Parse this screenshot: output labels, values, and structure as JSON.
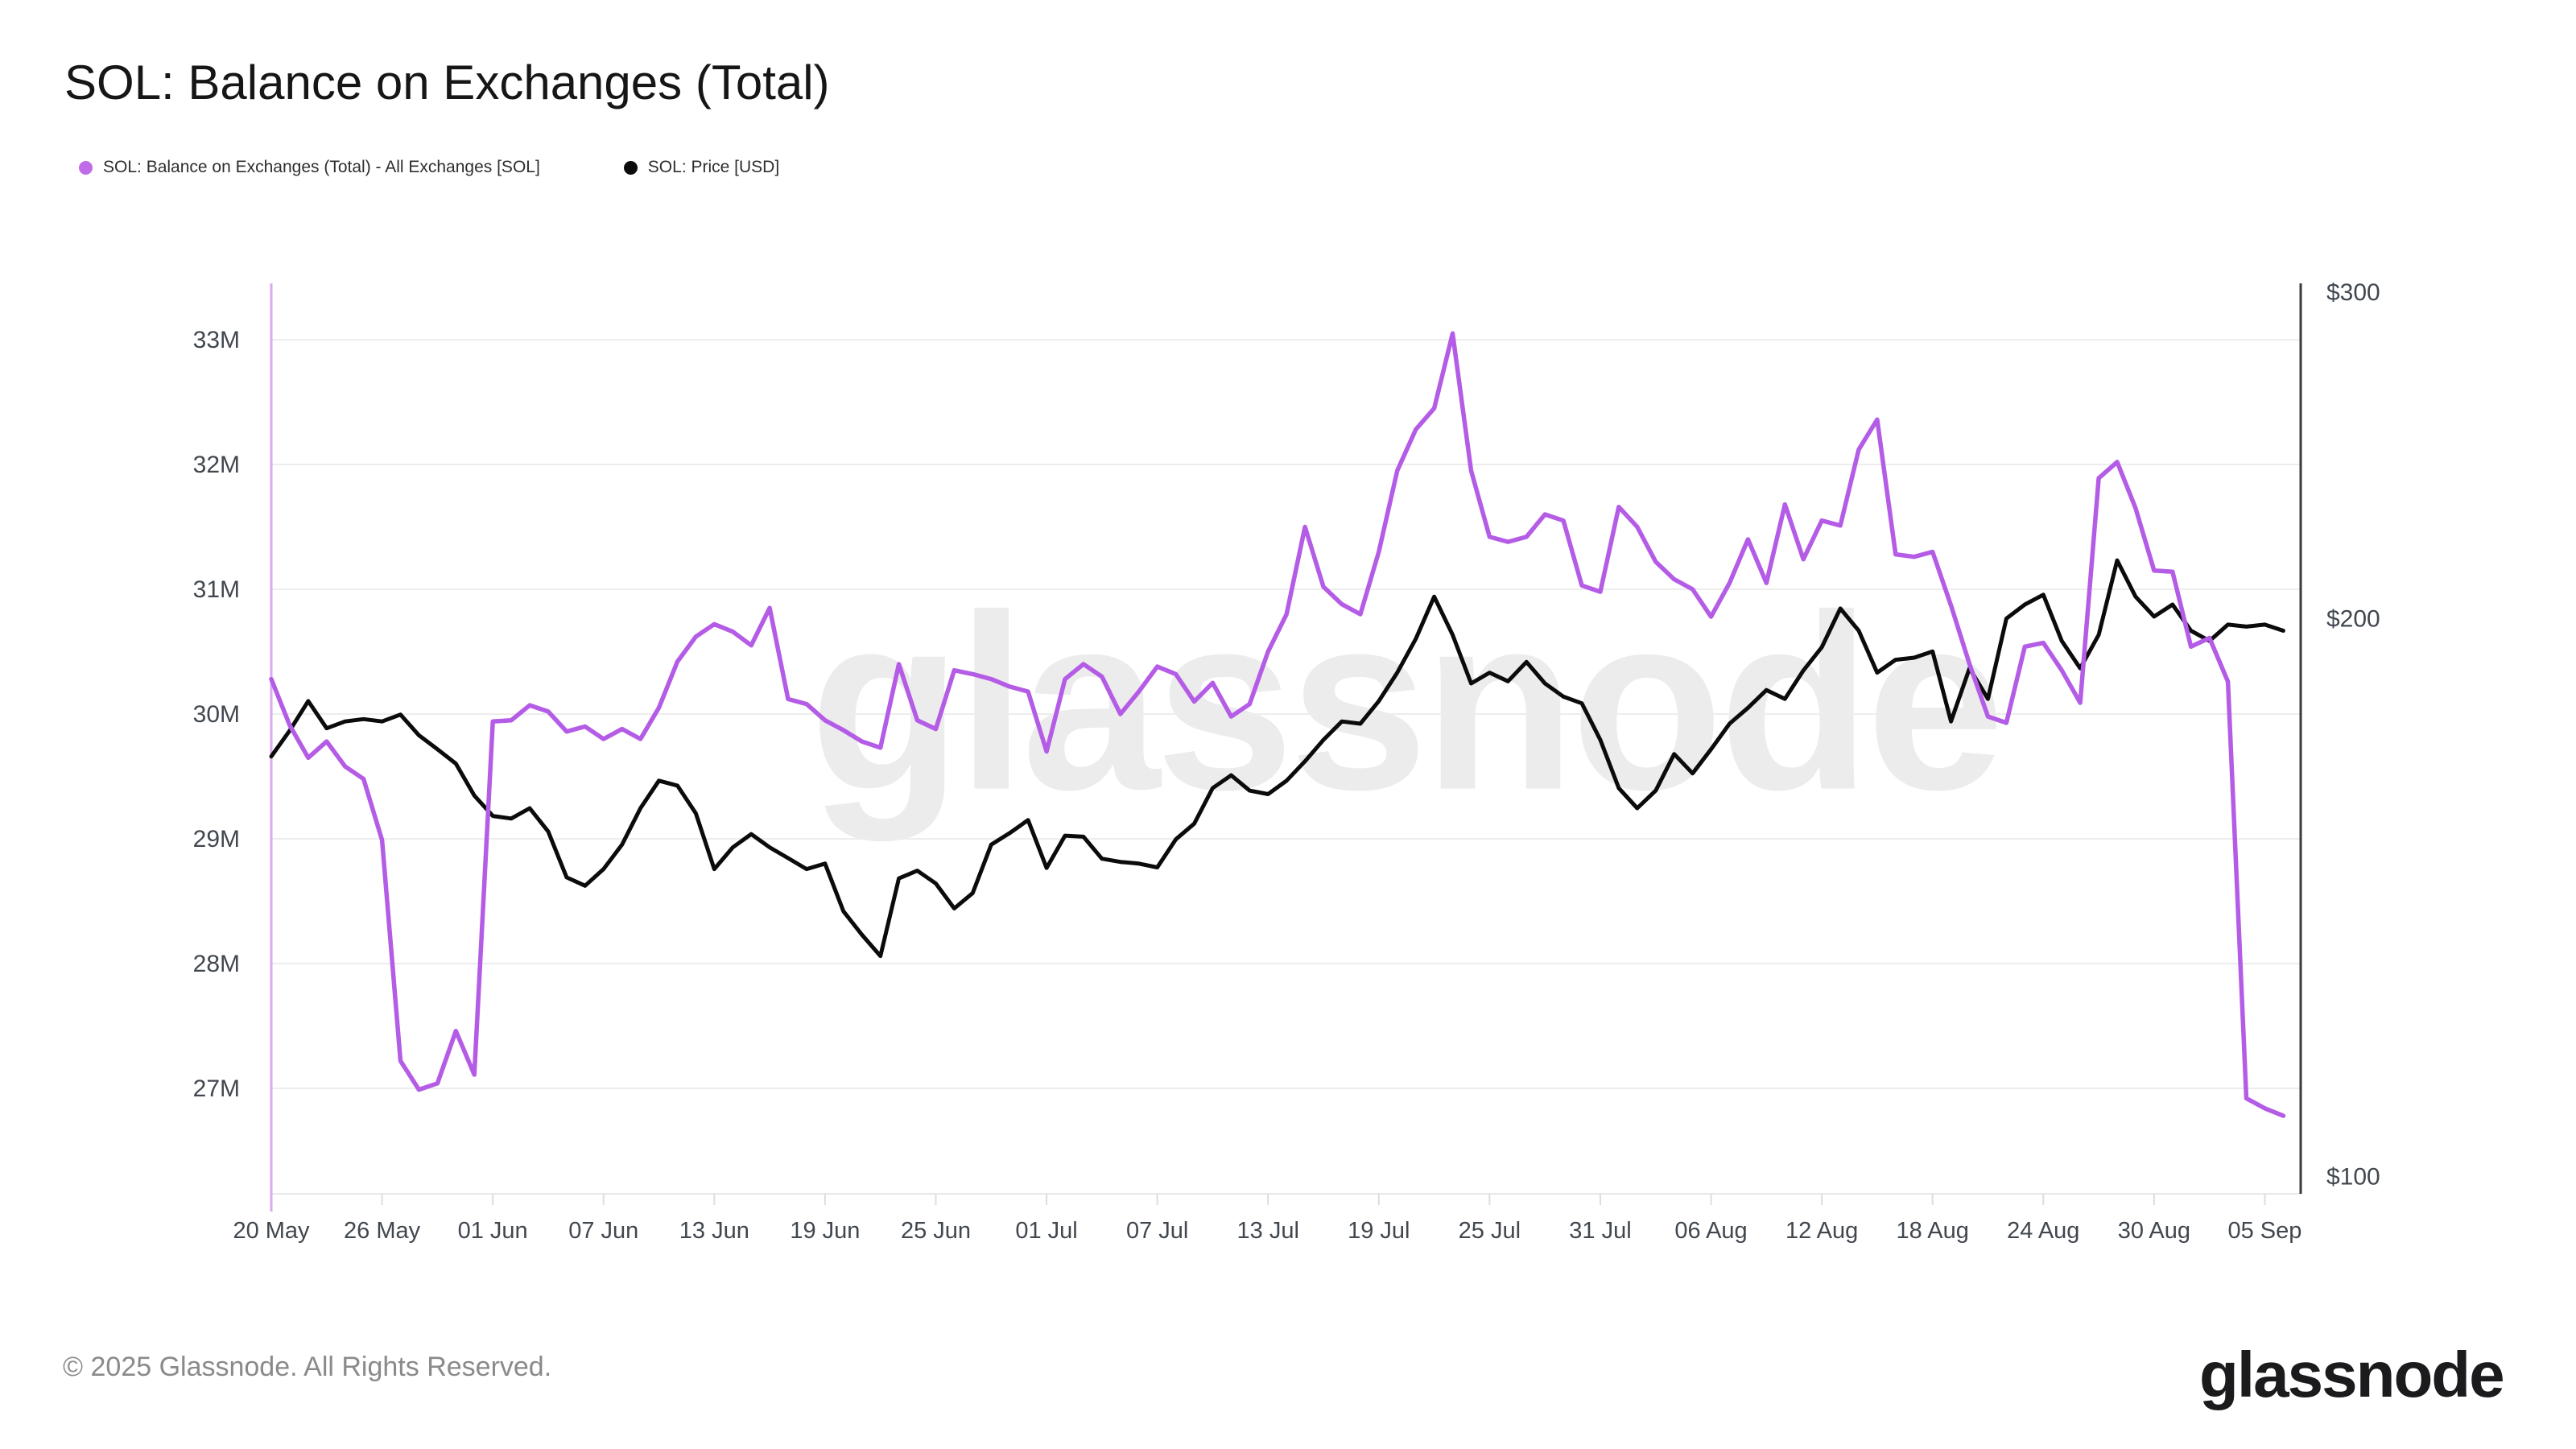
{
  "title": "SOL: Balance on Exchanges (Total)",
  "watermark": "glassnode",
  "legend": [
    {
      "label": "SOL: Balance on Exchanges (Total) - All Exchanges [SOL]",
      "color": "#c06ce8"
    },
    {
      "label": "SOL: Price [USD]",
      "color": "#0b0b0b"
    }
  ],
  "footer": {
    "copyright": "© 2025 Glassnode. All Rights Reserved.",
    "brand": "glassnode"
  },
  "chart_data": {
    "type": "line",
    "grid": true,
    "legend_position": "top-left",
    "start_date": "2025-05-20",
    "days": 110,
    "x_tick_day_offsets": [
      0,
      6,
      12,
      18,
      24,
      30,
      36,
      42,
      48,
      54,
      60,
      66,
      72,
      78,
      84,
      90,
      96,
      102,
      108
    ],
    "x_tick_labels": [
      "20 May",
      "26 May",
      "01 Jun",
      "07 Jun",
      "13 Jun",
      "19 Jun",
      "25 Jun",
      "01 Jul",
      "07 Jul",
      "13 Jul",
      "19 Jul",
      "25 Jul",
      "31 Jul",
      "06 Aug",
      "12 Aug",
      "18 Aug",
      "24 Aug",
      "30 Aug",
      "05 Sep"
    ],
    "left_axis": {
      "title": "Balance on Exchanges (Total) [SOL]",
      "scale": "linear",
      "tick_labels": [
        "33M",
        "32M",
        "31M",
        "30M",
        "29M",
        "28M",
        "27M"
      ],
      "tick_values": [
        33,
        32,
        31,
        30,
        29,
        28,
        27
      ],
      "ylim": [
        26.15,
        33.45
      ],
      "unit": "million SOL"
    },
    "right_axis": {
      "title": "Price [USD]",
      "scale": "log",
      "tick_labels": [
        "$300",
        "$200",
        "$100"
      ],
      "tick_values": [
        300,
        200,
        100
      ],
      "ylim": [
        98,
        303
      ],
      "unit": "USD"
    },
    "series": [
      {
        "name": "SOL: Price [USD]",
        "axis": "right",
        "color": "#0b0b0b",
        "stroke_width": 5,
        "values": [
          168.5,
          174,
          180.5,
          174.5,
          176,
          176.5,
          176,
          177.5,
          173,
          170,
          167,
          160.5,
          156.5,
          156,
          158,
          153.5,
          145,
          143.5,
          146.5,
          151,
          158,
          163.5,
          162.5,
          157,
          146.5,
          150.5,
          153,
          150.5,
          148.5,
          146.5,
          147.5,
          139,
          135,
          131.5,
          144.8,
          146.2,
          143.9,
          139.5,
          142.2,
          151,
          153.2,
          155.7,
          146.7,
          152.7,
          152.5,
          148.4,
          147.8,
          147.5,
          146.8,
          152,
          155,
          162,
          164.6,
          161.5,
          160.8,
          163.5,
          167.5,
          172,
          176,
          175.5,
          180.5,
          187,
          195,
          205.5,
          196,
          184.5,
          187,
          185,
          189.5,
          184.5,
          181.5,
          180,
          172,
          162,
          158,
          161.5,
          169,
          165,
          170,
          175.5,
          179,
          183,
          181,
          187.5,
          193,
          202.5,
          197,
          187,
          190,
          190.5,
          192,
          176,
          188,
          181,
          200,
          203.5,
          206,
          194.5,
          188,
          196,
          215,
          205.5,
          200.5,
          203.5,
          197,
          194.5,
          198.5,
          198,
          198.5,
          197
        ]
      },
      {
        "name": "SOL: Balance on Exchanges (Total) - All Exchanges [SOL]",
        "axis": "left",
        "color": "#b45ce6",
        "stroke_width": 5.5,
        "values": [
          30.28,
          29.91,
          29.65,
          29.78,
          29.58,
          29.48,
          28.99,
          27.22,
          26.99,
          27.04,
          27.46,
          27.11,
          29.94,
          29.95,
          30.07,
          30.02,
          29.86,
          29.9,
          29.8,
          29.88,
          29.8,
          30.05,
          30.42,
          30.62,
          30.72,
          30.66,
          30.55,
          30.85,
          30.12,
          30.08,
          29.95,
          29.87,
          29.78,
          29.73,
          30.4,
          29.95,
          29.88,
          30.35,
          30.32,
          30.28,
          30.22,
          30.18,
          29.7,
          30.28,
          30.4,
          30.3,
          30.0,
          30.18,
          30.38,
          30.32,
          30.1,
          30.25,
          29.98,
          30.08,
          30.5,
          30.8,
          31.5,
          31.02,
          30.88,
          30.8,
          31.3,
          31.95,
          32.28,
          32.45,
          33.05,
          31.95,
          31.42,
          31.38,
          31.42,
          31.6,
          31.55,
          31.03,
          30.98,
          31.66,
          31.5,
          31.22,
          31.08,
          31.0,
          30.78,
          31.05,
          31.4,
          31.05,
          31.68,
          31.24,
          31.55,
          31.51,
          32.12,
          32.36,
          31.28,
          31.26,
          31.3,
          30.87,
          30.4,
          29.98,
          29.93,
          30.54,
          30.57,
          30.35,
          30.09,
          31.89,
          32.02,
          31.65,
          31.15,
          31.14,
          30.54,
          30.61,
          30.26,
          26.92,
          26.84,
          26.78
        ]
      }
    ],
    "colors": {
      "gridline": "#ededed",
      "left_axis_line": "#d9a9f2",
      "right_axis_line": "#3a3a40",
      "axis_label": "#41474f",
      "tick_mark": "#dddddd",
      "bottom_line": "#e8e8e8"
    }
  }
}
